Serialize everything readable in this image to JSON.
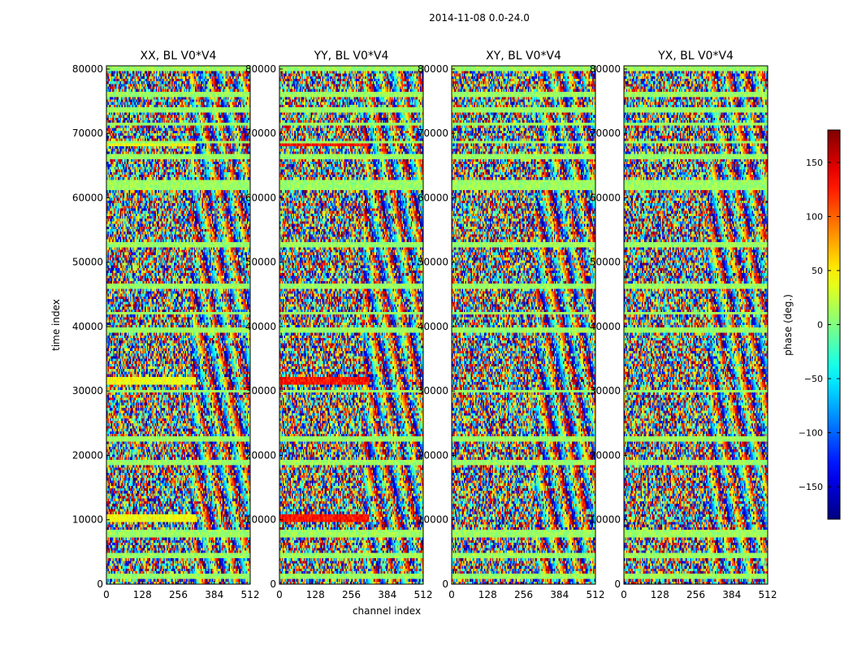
{
  "suptitle": "2014-11-08 0.0-24.0",
  "chart_data": [
    {
      "type": "heatmap",
      "title": "XX, BL V0*V4",
      "xlabel": "channel index",
      "ylabel": "time index",
      "xlim": [
        0,
        512
      ],
      "ylim": [
        0,
        80500
      ],
      "xticks": [
        0,
        128,
        256,
        384,
        512
      ],
      "yticks": [
        0,
        10000,
        20000,
        30000,
        40000,
        50000,
        60000,
        70000,
        80000
      ],
      "bias_phase": 40,
      "bias_channel_max": 320
    },
    {
      "type": "heatmap",
      "title": "YY, BL V0*V4",
      "xlabel": "channel index",
      "ylabel": "",
      "xlim": [
        0,
        512
      ],
      "ylim": [
        0,
        80500
      ],
      "xticks": [
        0,
        128,
        256,
        384,
        512
      ],
      "yticks": [
        0,
        10000,
        20000,
        30000,
        40000,
        50000,
        60000,
        70000,
        80000
      ],
      "bias_phase": 130,
      "bias_channel_max": 320
    },
    {
      "type": "heatmap",
      "title": "XY, BL V0*V4",
      "xlabel": "channel index",
      "ylabel": "",
      "xlim": [
        0,
        512
      ],
      "ylim": [
        0,
        80500
      ],
      "xticks": [
        0,
        128,
        256,
        384,
        512
      ],
      "yticks": [
        0,
        10000,
        20000,
        30000,
        40000,
        50000,
        60000,
        70000,
        80000
      ],
      "bias_phase": null,
      "bias_channel_max": 0
    },
    {
      "type": "heatmap",
      "title": "YX, BL V0*V4",
      "xlabel": "channel index",
      "ylabel": "",
      "xlim": [
        0,
        512
      ],
      "ylim": [
        0,
        80500
      ],
      "xticks": [
        0,
        128,
        256,
        384,
        512
      ],
      "yticks": [
        0,
        10000,
        20000,
        30000,
        40000,
        50000,
        60000,
        70000,
        80000
      ],
      "bias_phase": null,
      "bias_channel_max": 0
    }
  ],
  "flagged_bands_time": [
    [
      900,
      1500
    ],
    [
      4200,
      4700
    ],
    [
      7300,
      8300
    ],
    [
      18700,
      19300
    ],
    [
      22000,
      22800
    ],
    [
      29700,
      30300
    ],
    [
      39000,
      39800
    ],
    [
      41700,
      42300
    ],
    [
      45700,
      46500
    ],
    [
      52500,
      53200
    ],
    [
      61200,
      62700
    ],
    [
      66200,
      66800
    ],
    [
      68300,
      68800
    ],
    [
      71100,
      71600
    ],
    [
      73200,
      73900
    ],
    [
      75600,
      76300
    ],
    [
      79500,
      80500
    ]
  ],
  "bias_bands_time": [
    [
      9800,
      11000
    ],
    [
      31000,
      32300
    ],
    [
      45800,
      46600
    ],
    [
      52600,
      53300
    ],
    [
      62000,
      62800
    ],
    [
      68000,
      69000
    ],
    [
      73200,
      73800
    ]
  ],
  "colorbar": {
    "label": "phase (deg.)",
    "range": [
      -180,
      180
    ],
    "ticks": [
      -150,
      -100,
      -50,
      0,
      50,
      100,
      150
    ],
    "tick_labels": [
      "−150",
      "−100",
      "−50",
      "0",
      "50",
      "100",
      "150"
    ],
    "colormap": "jet"
  }
}
